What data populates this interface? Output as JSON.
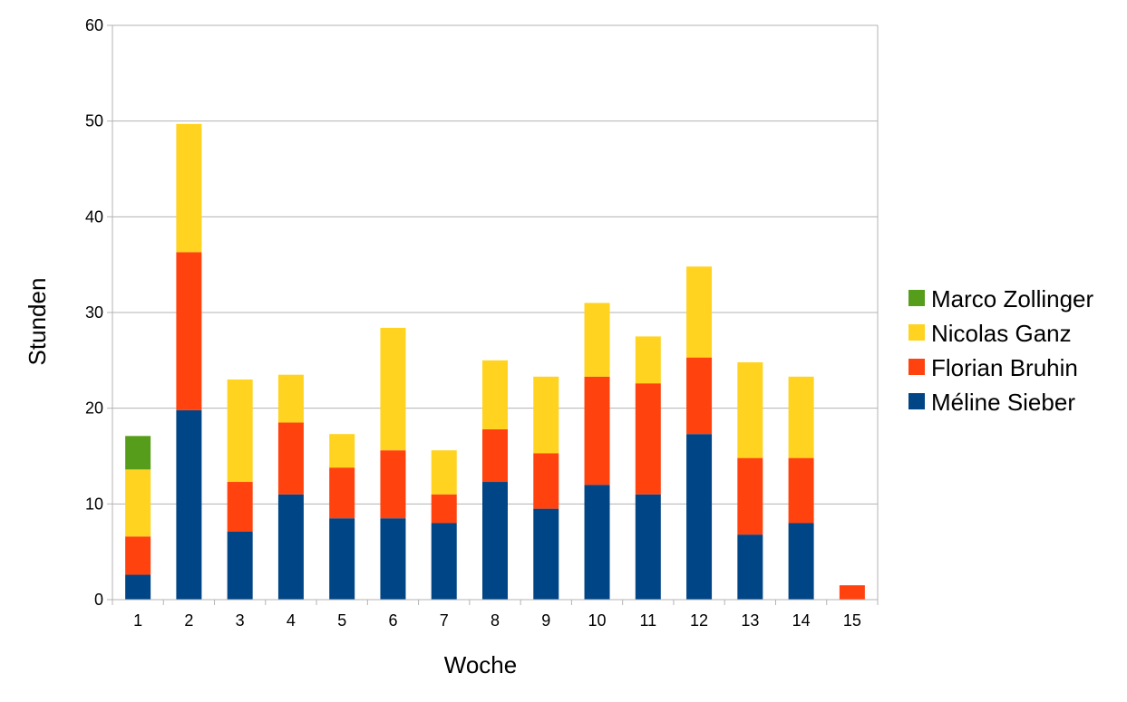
{
  "chart_data": {
    "type": "bar",
    "stacked": true,
    "categories": [
      "1",
      "2",
      "3",
      "4",
      "5",
      "6",
      "7",
      "8",
      "9",
      "10",
      "11",
      "12",
      "13",
      "14",
      "15"
    ],
    "xlabel": "Woche",
    "ylabel": "Stunden",
    "ylim": [
      0,
      60
    ],
    "yticks": [
      "0",
      "10",
      "20",
      "30",
      "40",
      "50",
      "60"
    ],
    "grid": true,
    "legend_position": "right",
    "series": [
      {
        "name": "Méline Sieber",
        "color": "#004586",
        "values": [
          2.6,
          19.8,
          7.1,
          11.0,
          8.5,
          8.5,
          8.0,
          12.3,
          9.5,
          12.0,
          11.0,
          17.3,
          6.8,
          8.0,
          0
        ]
      },
      {
        "name": "Florian Bruhin",
        "color": "#ff420e",
        "values": [
          4.0,
          16.5,
          5.2,
          7.5,
          5.3,
          7.1,
          3.0,
          5.5,
          5.8,
          11.3,
          11.6,
          8.0,
          8.0,
          6.8,
          1.5
        ]
      },
      {
        "name": "Nicolas Ganz",
        "color": "#ffd320",
        "values": [
          7.0,
          13.4,
          10.7,
          5.0,
          3.5,
          12.8,
          4.6,
          7.2,
          8.0,
          7.7,
          4.9,
          9.5,
          10.0,
          8.5,
          0
        ]
      },
      {
        "name": "Marco Zollinger",
        "color": "#579d1c",
        "values": [
          3.5,
          0,
          0,
          0,
          0,
          0,
          0,
          0,
          0,
          0,
          0,
          0,
          0,
          0,
          0
        ]
      }
    ],
    "legend_order": [
      "Marco Zollinger",
      "Nicolas Ganz",
      "Florian Bruhin",
      "Méline Sieber"
    ]
  }
}
